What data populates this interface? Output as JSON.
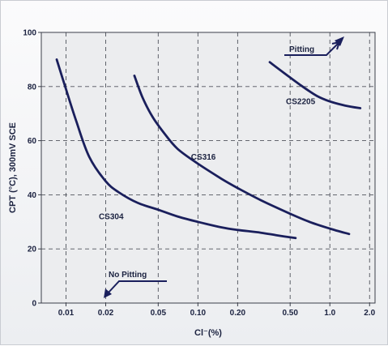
{
  "chart_data": {
    "type": "line",
    "title": "",
    "xlabel": "Cl⁻(%)",
    "ylabel": "CPT (°C), 300mV SCE",
    "x_scale": "log",
    "xlim": [
      0.0065,
      2.2
    ],
    "ylim": [
      0,
      100
    ],
    "x_ticks": [
      0.01,
      0.02,
      0.05,
      0.1,
      0.2,
      0.5,
      1.0,
      2.0
    ],
    "x_tick_labels": [
      "0.01",
      "0.02",
      "0.05",
      "0.10",
      "0.20",
      "0.50",
      "1.0",
      "2.0"
    ],
    "y_ticks": [
      0,
      20,
      40,
      60,
      80,
      100
    ],
    "y_tick_labels": [
      "0",
      "20",
      "40",
      "60",
      "80",
      "100"
    ],
    "grid": true,
    "series": [
      {
        "name": "CS304",
        "x": [
          0.0085,
          0.01,
          0.012,
          0.015,
          0.02,
          0.025,
          0.035,
          0.05,
          0.07,
          0.1,
          0.15,
          0.2,
          0.3,
          0.4,
          0.55
        ],
        "y": [
          90,
          79,
          67,
          54,
          45,
          41,
          37,
          34.5,
          32,
          30,
          28,
          27,
          26,
          25,
          24
        ]
      },
      {
        "name": "CS316",
        "x": [
          0.033,
          0.038,
          0.045,
          0.055,
          0.07,
          0.1,
          0.15,
          0.2,
          0.3,
          0.5,
          0.7,
          1.0,
          1.4
        ],
        "y": [
          84,
          76,
          69,
          63,
          57,
          51.5,
          46,
          42.5,
          38,
          33,
          30,
          27.5,
          25.5
        ]
      },
      {
        "name": "CS2205",
        "x": [
          0.35,
          0.45,
          0.6,
          0.8,
          1.0,
          1.3,
          1.7
        ],
        "y": [
          89,
          85,
          80.5,
          76.5,
          74.5,
          73,
          72
        ]
      }
    ],
    "annotations": [
      "Pitting",
      "No Pitting"
    ],
    "colors": {
      "line": "#1a1f5c",
      "grid": "#50535c",
      "plot_bg": "#ecedef",
      "text": "#1b2240"
    }
  }
}
